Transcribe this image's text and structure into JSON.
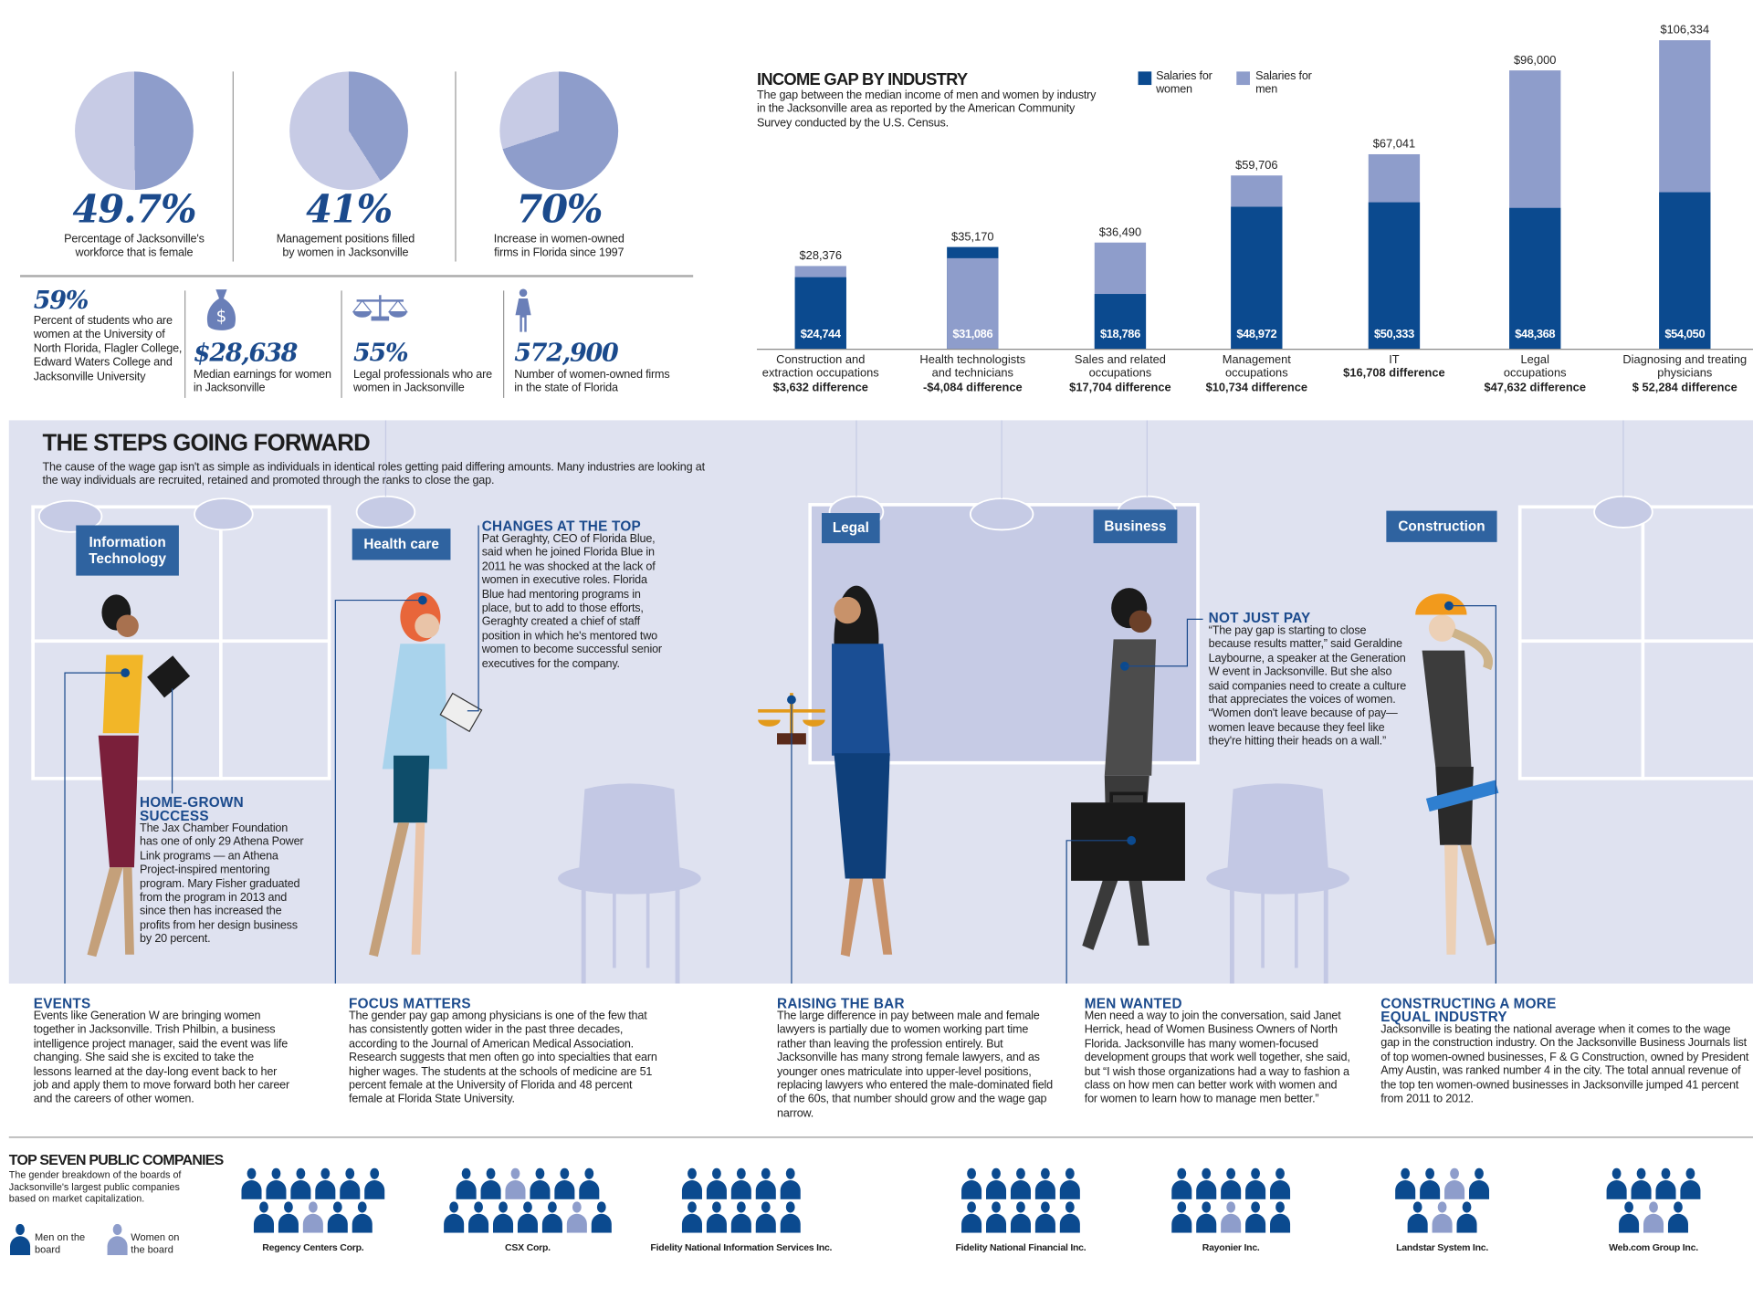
{
  "top_stats": [
    {
      "value": "49.7%",
      "percent": 49.7,
      "caption": [
        "Percentage of Jacksonville's",
        "workforce that is female"
      ]
    },
    {
      "value": "41%",
      "percent": 41,
      "caption": [
        "Management positions filled",
        "by women in Jacksonville"
      ]
    },
    {
      "value": "70%",
      "percent": 70,
      "caption": [
        "Increase in women-owned",
        "firms in Florida since 1997"
      ]
    }
  ],
  "small_stats": [
    {
      "value": "59%",
      "caption": "Percent of students who are women at the University of North Florida, Flagler College, Edward Waters College and Jacksonville University",
      "icon": "none"
    },
    {
      "value": "$28,638",
      "caption": "Median earnings for women in Jacksonville",
      "icon": "money-bag-icon"
    },
    {
      "value": "55%",
      "caption": "Legal professionals who are women in Jacksonville",
      "icon": "scales-icon"
    },
    {
      "value": "572,900",
      "caption": "Number of women-owned firms in the state of Florida",
      "icon": "woman-icon"
    }
  ],
  "chart_data": {
    "type": "bar",
    "title": "INCOME GAP BY INDUSTRY",
    "subtitle": "The gap between the median income of men and women by industry in the Jacksonville area as reported by the American Community Survey conducted by the U.S. Census.",
    "legend": [
      {
        "name": "Salaries for women",
        "color": "#0b4a8f"
      },
      {
        "name": "Salaries for men",
        "color": "#8e9dcb"
      }
    ],
    "legend_placement": "top",
    "grid": false,
    "ylim": [
      0,
      106334
    ],
    "categories": [
      {
        "label": [
          "Construction and",
          "extraction occupations"
        ],
        "difference": "$3,632 difference"
      },
      {
        "label": [
          "Health technologists",
          "and technicians"
        ],
        "difference": "-$4,084 difference"
      },
      {
        "label": [
          "Sales and related",
          "occupations"
        ],
        "difference": "$17,704 difference"
      },
      {
        "label": [
          "Management",
          "occupations"
        ],
        "difference": "$10,734 difference"
      },
      {
        "label": [
          "IT"
        ],
        "difference": "$16,708 difference"
      },
      {
        "label": [
          "Legal",
          "occupations"
        ],
        "difference": "$47,632 difference"
      },
      {
        "label": [
          "Diagnosing and treating",
          "physicians"
        ],
        "difference": "$ 52,284 difference"
      }
    ],
    "series": [
      {
        "name": "Salaries for women",
        "values": [
          24744,
          35170,
          18786,
          48972,
          50333,
          48368,
          54050
        ],
        "labels": [
          "$24,744",
          "$35,170",
          "$18,786",
          "$48,972",
          "$50,333",
          "$48,368",
          "$54,050"
        ]
      },
      {
        "name": "Salaries for men",
        "values": [
          28376,
          31086,
          36490,
          59706,
          67041,
          96000,
          106334
        ],
        "labels": [
          "$28,376",
          "$31,086",
          "$36,490",
          "$59,706",
          "$67,041",
          "$96,000",
          "$106,334"
        ]
      }
    ]
  },
  "steps": {
    "title": "THE STEPS GOING FORWARD",
    "intro": "The cause of the wage gap isn't as simple as individuals in identical roles getting paid differing amounts.  Many industries are looking at the way individuals are recruited, retained and promoted through the ranks to close the gap.",
    "tags": {
      "it": "Information Technology",
      "health": "Health care",
      "legal": "Legal",
      "business": "Business",
      "construction": "Construction"
    },
    "callouts": {
      "changes": {
        "title": "CHANGES AT THE TOP",
        "body": "Pat Geraghty, CEO of Florida Blue, said when he joined Florida Blue in 2011 he was shocked at the lack of women in executive roles. Florida Blue had mentoring programs in place, but to add to those efforts, Geraghty created a chief of staff position in which he's mentored two women to become successful senior executives for the company."
      },
      "homegrown": {
        "title": "HOME-GROWN SUCCESS",
        "body": "The Jax Chamber Foundation has one of only 29 Athena Power Link programs — an Athena Project-inspired mentoring program. Mary Fisher graduated from the program in 2013 and since then has increased the profits from her design business by 20 percent."
      },
      "notjustpay": {
        "title": "NOT JUST PAY",
        "body": "“The pay gap is starting to close because results matter,” said Geraldine Laybourne, a speaker at the Generation W event in Jacksonville. But she also said companies need to create a culture that appreciates the voices of women. “Women don't leave because of pay— women leave because they feel like they're hitting their heads on a wall.”"
      }
    },
    "stories": [
      {
        "title": "EVENTS",
        "body": "Events like Generation W are bringing women together in Jacksonville. Trish Philbin, a business intelligence project manager, said the event was life changing. She said she is excited to take the lessons learned at the day-long event back to her job and apply them to move forward both her career and the careers of other women."
      },
      {
        "title": "FOCUS MATTERS",
        "body": "The gender pay gap among physicians is one of the few that has consistently gotten wider in the past three decades, according to the Journal of American Medical Association. Research suggests that men often go into specialties that earn higher wages. The students at the schools of medicine are 51 percent female at the University of Florida and 48 percent female at Florida State University."
      },
      {
        "title": "RAISING THE BAR",
        "body": "The large difference in pay between male and female lawyers is partially due to women working part time rather than leaving the profession entirely. But Jacksonville has many strong female lawyers, and as younger ones matriculate into upper-level positions, replacing lawyers who entered the male-dominated field of the 60s, that number should grow and the wage gap narrow."
      },
      {
        "title": "MEN WANTED",
        "body": "Men need a way to join the conversation, said Janet Herrick, head of Women Business Owners of North Florida. Jacksonville has many women-focused development groups that work well together, she said, but “I wish those organizations had a way to fashion a class on how men can better work with women and for women to learn how to manage men better.”"
      },
      {
        "title": "CONSTRUCTING A MORE EQUAL INDUSTRY",
        "body": "Jacksonville is beating the national average when it comes to the wage gap in the construction industry. On the Jacksonville Business Journals list of top women-owned businesses, F & G Construction, owned by President Amy Austin, was ranked number 4 in the city. The total annual revenue of the top ten women-owned businesses in Jacksonville jumped 41 percent from 2011 to 2012."
      }
    ]
  },
  "boards": {
    "title": "TOP SEVEN PUBLIC COMPANIES",
    "subtitle": "The gender breakdown of the boards of Jacksonville's largest public companies based on market capitalization.",
    "legend_men": "Men on the board",
    "legend_women": "Women on the board",
    "colors": {
      "men": "#0b4a8f",
      "women": "#8e9dcb"
    },
    "companies": [
      {
        "name": "Regency Centers Corp.",
        "rows": [
          "mmmmmm",
          "mmwmm"
        ]
      },
      {
        "name": "CSX Corp.",
        "rows": [
          "mmwmmm",
          "mmmmmwm"
        ]
      },
      {
        "name": "Fidelity National Information Services Inc.",
        "rows": [
          "mmmmm",
          "mmmmm"
        ]
      },
      {
        "name": "Fidelity National Financial Inc.",
        "rows": [
          "mmmmm",
          "mmmmm"
        ]
      },
      {
        "name": "Rayonier Inc.",
        "rows": [
          "mmmmm",
          "mmwmm"
        ]
      },
      {
        "name": "Landstar System Inc.",
        "rows": [
          "mmwm",
          "mwm"
        ]
      },
      {
        "name": "Web.com Group Inc.",
        "rows": [
          "mmmm",
          "mwm"
        ]
      }
    ]
  }
}
